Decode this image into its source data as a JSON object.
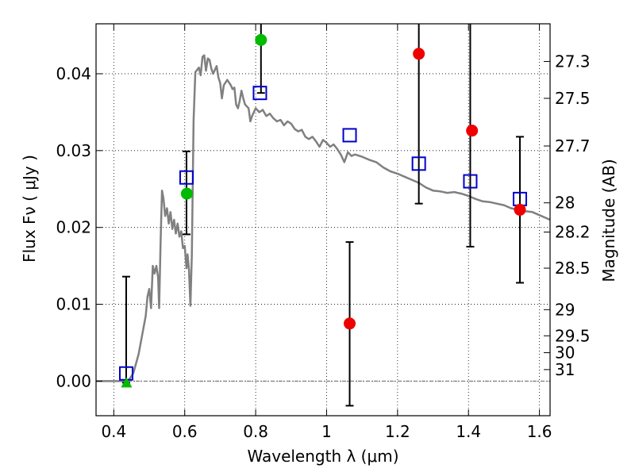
{
  "chart_data": {
    "type": "scatter",
    "xlabel": "Wavelength  λ (μm)",
    "ylabel": "Flux  Fν  ( μJy )",
    "ylabel_right": "Magnitude (AB)",
    "xlim": [
      0.35,
      1.63
    ],
    "ylim": [
      -0.0045,
      0.0465
    ],
    "grid": true,
    "x_ticks": [
      0.4,
      0.6,
      0.8,
      1.0,
      1.2,
      1.4,
      1.6
    ],
    "x_tick_labels": [
      "0.4",
      "0.6",
      "0.8",
      "1",
      "1.2",
      "1.4",
      "1.6"
    ],
    "y_ticks": [
      0.0,
      0.01,
      0.02,
      0.03,
      0.04
    ],
    "y_tick_labels": [
      "0.00",
      "0.01",
      "0.02",
      "0.03",
      "0.04"
    ],
    "right_ticks": [
      {
        "label": "27.3",
        "flux": 0.0416
      },
      {
        "label": "27.5",
        "flux": 0.0368
      },
      {
        "label": "27.7",
        "flux": 0.0306
      },
      {
        "label": "28",
        "flux": 0.0232
      },
      {
        "label": "28.2",
        "flux": 0.0194
      },
      {
        "label": "28.5",
        "flux": 0.0147
      },
      {
        "label": "29",
        "flux": 0.0093
      },
      {
        "label": "29.5",
        "flux": 0.0059
      },
      {
        "label": "30",
        "flux": 0.0037
      },
      {
        "label": "31",
        "flux": 0.0015
      }
    ],
    "series": [
      {
        "marker": "line",
        "color": "#808080",
        "points": [
          [
            0.35,
            0.0
          ],
          [
            0.44,
            0.0
          ],
          [
            0.455,
            0.001
          ],
          [
            0.47,
            0.0035
          ],
          [
            0.48,
            0.006
          ],
          [
            0.49,
            0.0085
          ],
          [
            0.495,
            0.011
          ],
          [
            0.5,
            0.012
          ],
          [
            0.505,
            0.0095
          ],
          [
            0.51,
            0.015
          ],
          [
            0.515,
            0.014
          ],
          [
            0.52,
            0.015
          ],
          [
            0.525,
            0.0135
          ],
          [
            0.528,
            0.0095
          ],
          [
            0.532,
            0.018
          ],
          [
            0.536,
            0.0248
          ],
          [
            0.54,
            0.0238
          ],
          [
            0.545,
            0.0215
          ],
          [
            0.55,
            0.0225
          ],
          [
            0.555,
            0.0205
          ],
          [
            0.56,
            0.022
          ],
          [
            0.565,
            0.0198
          ],
          [
            0.57,
            0.021
          ],
          [
            0.575,
            0.0192
          ],
          [
            0.58,
            0.0205
          ],
          [
            0.585,
            0.0188
          ],
          [
            0.59,
            0.0195
          ],
          [
            0.595,
            0.0173
          ],
          [
            0.6,
            0.0176
          ],
          [
            0.605,
            0.0147
          ],
          [
            0.608,
            0.0165
          ],
          [
            0.612,
            0.0145
          ],
          [
            0.616,
            0.0098
          ],
          [
            0.62,
            0.0165
          ],
          [
            0.625,
            0.034
          ],
          [
            0.63,
            0.0402
          ],
          [
            0.64,
            0.0408
          ],
          [
            0.645,
            0.0398
          ],
          [
            0.65,
            0.0422
          ],
          [
            0.655,
            0.0424
          ],
          [
            0.66,
            0.0404
          ],
          [
            0.665,
            0.042
          ],
          [
            0.67,
            0.0418
          ],
          [
            0.675,
            0.0407
          ],
          [
            0.68,
            0.04
          ],
          [
            0.69,
            0.041
          ],
          [
            0.695,
            0.0395
          ],
          [
            0.7,
            0.0388
          ],
          [
            0.705,
            0.0368
          ],
          [
            0.71,
            0.0385
          ],
          [
            0.72,
            0.0392
          ],
          [
            0.73,
            0.0385
          ],
          [
            0.735,
            0.038
          ],
          [
            0.74,
            0.0382
          ],
          [
            0.745,
            0.036
          ],
          [
            0.75,
            0.0355
          ],
          [
            0.755,
            0.0365
          ],
          [
            0.76,
            0.0378
          ],
          [
            0.765,
            0.0368
          ],
          [
            0.77,
            0.036
          ],
          [
            0.78,
            0.0355
          ],
          [
            0.785,
            0.0338
          ],
          [
            0.79,
            0.0345
          ],
          [
            0.8,
            0.0355
          ],
          [
            0.81,
            0.035
          ],
          [
            0.82,
            0.0353
          ],
          [
            0.83,
            0.0345
          ],
          [
            0.84,
            0.0348
          ],
          [
            0.85,
            0.0342
          ],
          [
            0.86,
            0.0338
          ],
          [
            0.87,
            0.034
          ],
          [
            0.88,
            0.0333
          ],
          [
            0.89,
            0.0338
          ],
          [
            0.9,
            0.0335
          ],
          [
            0.91,
            0.0328
          ],
          [
            0.92,
            0.0325
          ],
          [
            0.93,
            0.0327
          ],
          [
            0.94,
            0.0318
          ],
          [
            0.95,
            0.0315
          ],
          [
            0.96,
            0.0318
          ],
          [
            0.97,
            0.0312
          ],
          [
            0.98,
            0.0305
          ],
          [
            0.99,
            0.0314
          ],
          [
            1.0,
            0.031
          ],
          [
            1.01,
            0.0305
          ],
          [
            1.02,
            0.0308
          ],
          [
            1.03,
            0.0302
          ],
          [
            1.04,
            0.0295
          ],
          [
            1.05,
            0.0285
          ],
          [
            1.06,
            0.0298
          ],
          [
            1.07,
            0.0293
          ],
          [
            1.08,
            0.0295
          ],
          [
            1.1,
            0.0292
          ],
          [
            1.12,
            0.0288
          ],
          [
            1.14,
            0.0285
          ],
          [
            1.16,
            0.0278
          ],
          [
            1.18,
            0.0273
          ],
          [
            1.2,
            0.027
          ],
          [
            1.22,
            0.0266
          ],
          [
            1.24,
            0.0262
          ],
          [
            1.26,
            0.0258
          ],
          [
            1.28,
            0.0252
          ],
          [
            1.3,
            0.0248
          ],
          [
            1.32,
            0.0247
          ],
          [
            1.34,
            0.0245
          ],
          [
            1.36,
            0.0246
          ],
          [
            1.38,
            0.0244
          ],
          [
            1.4,
            0.0241
          ],
          [
            1.42,
            0.0237
          ],
          [
            1.44,
            0.0234
          ],
          [
            1.46,
            0.0233
          ],
          [
            1.48,
            0.0231
          ],
          [
            1.5,
            0.0229
          ],
          [
            1.52,
            0.0225
          ],
          [
            1.54,
            0.0223
          ],
          [
            1.56,
            0.0221
          ],
          [
            1.58,
            0.022
          ],
          [
            1.6,
            0.0216
          ],
          [
            1.63,
            0.021
          ]
        ]
      },
      {
        "marker": "open-square",
        "color": "#0000cc",
        "points": [
          [
            0.435,
            0.001
          ],
          [
            0.605,
            0.0265
          ],
          [
            0.812,
            0.0375
          ],
          [
            1.065,
            0.032
          ],
          [
            1.26,
            0.0283
          ],
          [
            1.405,
            0.026
          ],
          [
            1.545,
            0.0237
          ]
        ]
      },
      {
        "marker": "filled-circle",
        "color": "#00bb00",
        "points": [
          [
            0.606,
            0.0244
          ],
          [
            0.815,
            0.0444
          ]
        ]
      },
      {
        "marker": "filled-triangle",
        "color": "#00bb00",
        "points": [
          [
            0.436,
            -0.0002
          ]
        ]
      },
      {
        "marker": "filled-circle",
        "color": "#ee0000",
        "points": [
          [
            1.065,
            0.0075
          ],
          [
            1.26,
            0.0426
          ],
          [
            1.41,
            0.0326
          ],
          [
            1.545,
            0.0223
          ]
        ]
      }
    ],
    "error_bars": [
      {
        "x": 0.435,
        "low": -0.0002,
        "high": 0.0136
      },
      {
        "x": 0.605,
        "low": 0.0191,
        "high": 0.0299
      },
      {
        "x": 0.815,
        "low": 0.0375,
        "high": 0.0465
      },
      {
        "x": 1.065,
        "low": -0.0032,
        "high": 0.0181
      },
      {
        "x": 1.26,
        "low": 0.0231,
        "high": 0.0465
      },
      {
        "x": 1.405,
        "low": 0.0175,
        "high": 0.0465
      },
      {
        "x": 1.545,
        "low": 0.0128,
        "high": 0.0318
      }
    ]
  }
}
